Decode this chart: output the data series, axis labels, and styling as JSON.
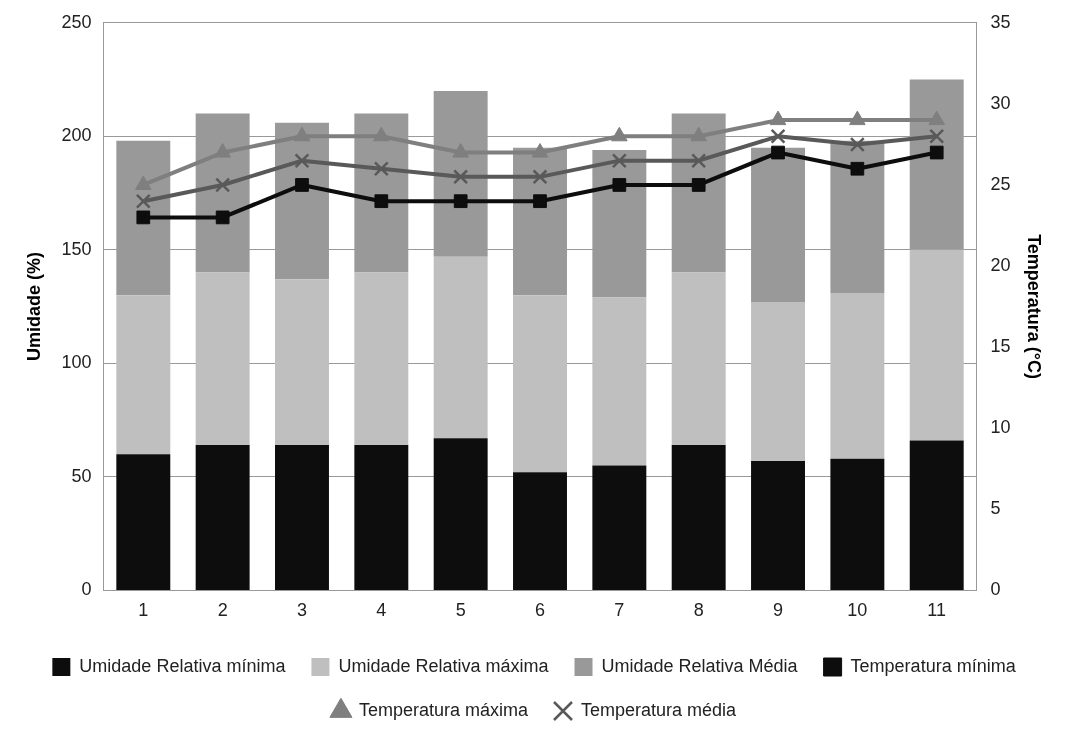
{
  "chart_data": {
    "type": "bar",
    "stacked": true,
    "categories": [
      "1",
      "2",
      "3",
      "4",
      "5",
      "6",
      "7",
      "8",
      "9",
      "10",
      "11"
    ],
    "ylabel": "Umidade (%)",
    "y2label": "Temperatura (°C)",
    "ylim": [
      0,
      250
    ],
    "yticks": [
      0,
      50,
      100,
      150,
      200,
      250
    ],
    "y2lim": [
      0,
      35
    ],
    "y2ticks": [
      0,
      5,
      10,
      15,
      20,
      25,
      30,
      35
    ],
    "grid": "y",
    "legend": "bottom",
    "series": [
      {
        "name": "Umidade Relativa mínima",
        "color": "#0d0d0d",
        "values": [
          60,
          64,
          64,
          64,
          67,
          52,
          55,
          64,
          57,
          58,
          66
        ]
      },
      {
        "name": "Umidade Relativa máxima",
        "color": "#bfbfbf",
        "values": [
          70,
          76,
          73,
          76,
          80,
          78,
          74,
          76,
          70,
          73,
          84
        ]
      },
      {
        "name": "Umidade Relativa Média",
        "color": "#999999",
        "values": [
          68,
          70,
          69,
          70,
          73,
          65,
          65,
          70,
          68,
          67,
          75
        ]
      },
      {
        "name": "Temperatura mínima",
        "type": "line",
        "axis": "y2",
        "marker": "square",
        "color": "#0d0d0d",
        "values": [
          23,
          23,
          25,
          24,
          24,
          24,
          25,
          25,
          27,
          26,
          27
        ]
      },
      {
        "name": "Temperatura máxima",
        "type": "line",
        "axis": "y2",
        "marker": "triangle",
        "color": "#7f7f7f",
        "values": [
          25,
          27,
          28,
          28,
          27,
          27,
          28,
          28,
          29,
          29,
          29
        ]
      },
      {
        "name": "Temperatura média",
        "type": "line",
        "axis": "y2",
        "marker": "cross",
        "color": "#595959",
        "values": [
          24,
          25,
          26.5,
          26,
          25.5,
          25.5,
          26.5,
          26.5,
          28,
          27.5,
          28
        ]
      }
    ]
  }
}
